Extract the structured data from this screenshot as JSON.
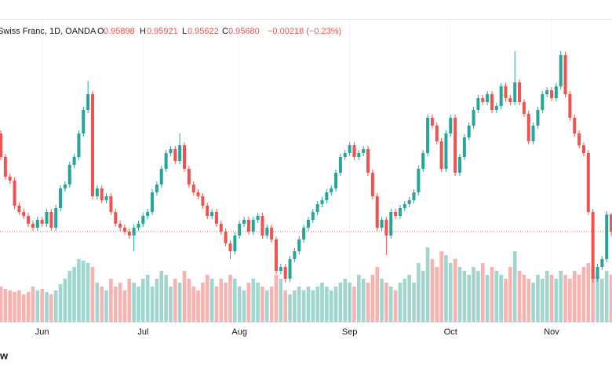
{
  "chart_data": {
    "type": "candlestick",
    "title": "Swiss Franc, 1D, OANDA",
    "ohlc_names": [
      "O",
      "H",
      "L",
      "C"
    ],
    "ohlc_labels": [
      "0.95898",
      "0.95921",
      "0.95622",
      "0.95680"
    ],
    "change": "−0.00218 (−0.23%)",
    "footer": "w",
    "up_color": "#26a69a",
    "down_color": "#ef5350",
    "volume_up_color": "#9fd6cf",
    "volume_down_color": "#f7b3b0",
    "ylim": [
      0.9453,
      0.9838
    ],
    "volume_lim": [
      0,
      100
    ],
    "grid": true,
    "categories": [
      null,
      null,
      null,
      null,
      null,
      null,
      null,
      null,
      null,
      "Jun",
      null,
      null,
      null,
      null,
      null,
      null,
      null,
      null,
      null,
      null,
      null,
      null,
      null,
      null,
      null,
      null,
      null,
      null,
      null,
      null,
      null,
      "Jul",
      null,
      null,
      null,
      null,
      null,
      null,
      null,
      null,
      null,
      null,
      null,
      null,
      null,
      null,
      null,
      null,
      null,
      null,
      null,
      null,
      "Aug",
      null,
      null,
      null,
      null,
      null,
      null,
      null,
      null,
      null,
      null,
      null,
      null,
      null,
      null,
      null,
      null,
      null,
      null,
      null,
      null,
      null,
      null,
      null,
      "Sep",
      null,
      null,
      null,
      null,
      null,
      null,
      null,
      null,
      null,
      null,
      null,
      null,
      null,
      null,
      null,
      null,
      null,
      null,
      null,
      null,
      null,
      "Oct",
      null,
      null,
      null,
      null,
      null,
      null,
      null,
      null,
      null,
      null,
      null,
      null,
      null,
      null,
      null,
      null,
      null,
      null,
      null,
      null,
      null,
      "Nov",
      null,
      null,
      null,
      null,
      null,
      null,
      null,
      null,
      null,
      null,
      null,
      null,
      null
    ],
    "open": [
      0.9693,
      0.9663,
      0.9638,
      0.9633,
      0.9601,
      0.9593,
      0.9588,
      0.9578,
      0.9573,
      0.9583,
      0.9578,
      0.9593,
      0.9573,
      0.9598,
      0.9623,
      0.9628,
      0.9653,
      0.9663,
      0.9693,
      0.9723,
      0.9743,
      0.9613,
      0.9623,
      0.9608,
      0.9613,
      0.9593,
      0.9578,
      0.9573,
      0.9568,
      0.9563,
      0.9573,
      0.9578,
      0.9588,
      0.9593,
      0.9618,
      0.9628,
      0.9648,
      0.9668,
      0.9673,
      0.9658,
      0.9678,
      0.9648,
      0.9628,
      0.9618,
      0.9613,
      0.9601,
      0.9588,
      0.9593,
      0.9578,
      0.9568,
      0.9553,
      0.9543,
      0.9563,
      0.9578,
      0.9583,
      0.9568,
      0.9583,
      0.9588,
      0.9563,
      0.9573,
      0.9558,
      0.9518,
      0.9523,
      0.9508,
      0.9533,
      0.9543,
      0.9558,
      0.9573,
      0.9583,
      0.9593,
      0.9603,
      0.9608,
      0.9618,
      0.9623,
      0.9643,
      0.9663,
      0.9668,
      0.9678,
      0.9663,
      0.9668,
      0.9673,
      0.9643,
      0.9613,
      0.9573,
      0.9583,
      0.9563,
      0.9593,
      0.9588,
      0.9598,
      0.9603,
      0.9608,
      0.9618,
      0.9648,
      0.9668,
      0.9713,
      0.9703,
      0.9683,
      0.9648,
      0.9693,
      0.9713,
      0.9643,
      0.9663,
      0.9688,
      0.9703,
      0.9723,
      0.9738,
      0.9733,
      0.9743,
      0.9723,
      0.9728,
      0.9753,
      0.9738,
      0.9733,
      0.9758,
      0.9733,
      0.9718,
      0.9683,
      0.9703,
      0.9723,
      0.9743,
      0.9748,
      0.9738,
      0.9753,
      0.9793,
      0.9743,
      0.9713,
      0.9693,
      0.9678,
      0.9668,
      0.9593,
      0.9508,
      0.9523,
      0.9533,
      0.95898
    ],
    "high": [
      0.9697,
      0.9667,
      0.9642,
      0.9637,
      0.9605,
      0.9597,
      0.9592,
      0.9582,
      0.9587,
      0.9587,
      0.9597,
      0.9597,
      0.9602,
      0.9627,
      0.9632,
      0.9657,
      0.9667,
      0.9697,
      0.9727,
      0.976,
      0.9747,
      0.9627,
      0.9627,
      0.9617,
      0.9617,
      0.9597,
      0.9582,
      0.9577,
      0.9572,
      0.9577,
      0.9582,
      0.9592,
      0.9597,
      0.9622,
      0.9632,
      0.9652,
      0.9672,
      0.9677,
      0.9677,
      0.9693,
      0.9682,
      0.9652,
      0.9632,
      0.9622,
      0.9617,
      0.9605,
      0.9597,
      0.9597,
      0.9582,
      0.9572,
      0.9557,
      0.9567,
      0.9582,
      0.9587,
      0.9587,
      0.9587,
      0.9592,
      0.9592,
      0.9577,
      0.9577,
      0.9562,
      0.9527,
      0.9527,
      0.9537,
      0.9547,
      0.9562,
      0.9577,
      0.9587,
      0.9597,
      0.9607,
      0.9612,
      0.9622,
      0.9627,
      0.9647,
      0.9667,
      0.9672,
      0.9682,
      0.9682,
      0.9672,
      0.9677,
      0.9677,
      0.9647,
      0.9617,
      0.9587,
      0.9587,
      0.9597,
      0.9597,
      0.9602,
      0.9607,
      0.9612,
      0.9622,
      0.9652,
      0.9672,
      0.9717,
      0.9717,
      0.9707,
      0.9687,
      0.9697,
      0.9717,
      0.9717,
      0.9667,
      0.9692,
      0.9707,
      0.9727,
      0.9742,
      0.9742,
      0.9747,
      0.9747,
      0.9732,
      0.9757,
      0.9757,
      0.9742,
      0.9798,
      0.9762,
      0.9737,
      0.9722,
      0.9707,
      0.9727,
      0.9747,
      0.9752,
      0.9752,
      0.9757,
      0.9798,
      0.9797,
      0.9747,
      0.9717,
      0.9697,
      0.9682,
      0.9672,
      0.9597,
      0.9527,
      0.9537,
      0.9594,
      0.95921
    ],
    "low": [
      0.9659,
      0.9634,
      0.9629,
      0.9597,
      0.9589,
      0.9584,
      0.9574,
      0.9569,
      0.9569,
      0.9574,
      0.9574,
      0.9569,
      0.9569,
      0.9594,
      0.9619,
      0.9624,
      0.9649,
      0.9659,
      0.9689,
      0.9719,
      0.9609,
      0.9609,
      0.9604,
      0.9604,
      0.9589,
      0.9574,
      0.9569,
      0.9564,
      0.9559,
      0.9543,
      0.9569,
      0.9574,
      0.9584,
      0.9589,
      0.9614,
      0.9624,
      0.9644,
      0.9664,
      0.9654,
      0.9654,
      0.9644,
      0.9624,
      0.9614,
      0.9609,
      0.9597,
      0.9584,
      0.9584,
      0.9574,
      0.9564,
      0.9549,
      0.9533,
      0.9539,
      0.9559,
      0.9574,
      0.9564,
      0.9564,
      0.9579,
      0.9559,
      0.9559,
      0.9554,
      0.9514,
      0.9514,
      0.9503,
      0.9504,
      0.9529,
      0.9539,
      0.9554,
      0.9569,
      0.9579,
      0.9589,
      0.9599,
      0.9604,
      0.9614,
      0.9619,
      0.9639,
      0.9659,
      0.9664,
      0.9659,
      0.9659,
      0.9664,
      0.9639,
      0.9609,
      0.9569,
      0.9569,
      0.9538,
      0.9559,
      0.9584,
      0.9584,
      0.9594,
      0.9599,
      0.9604,
      0.9614,
      0.9644,
      0.9664,
      0.9699,
      0.9679,
      0.9644,
      0.9644,
      0.9689,
      0.9639,
      0.9639,
      0.9659,
      0.9684,
      0.9699,
      0.9719,
      0.9729,
      0.9729,
      0.9719,
      0.9719,
      0.9724,
      0.9734,
      0.9729,
      0.9729,
      0.9729,
      0.9714,
      0.9679,
      0.9679,
      0.9699,
      0.9719,
      0.9739,
      0.9734,
      0.9734,
      0.9749,
      0.9739,
      0.9709,
      0.9689,
      0.9674,
      0.9664,
      0.9589,
      0.9503,
      0.9504,
      0.9519,
      0.9529,
      0.95622
    ],
    "close": [
      0.9663,
      0.9638,
      0.9633,
      0.9601,
      0.9593,
      0.9588,
      0.9578,
      0.9573,
      0.9583,
      0.9578,
      0.9593,
      0.9573,
      0.9598,
      0.9623,
      0.9628,
      0.9653,
      0.9663,
      0.9693,
      0.9723,
      0.9743,
      0.9613,
      0.9623,
      0.9608,
      0.9613,
      0.9593,
      0.9578,
      0.9573,
      0.9568,
      0.9563,
      0.9573,
      0.9578,
      0.9588,
      0.9593,
      0.9618,
      0.9628,
      0.9648,
      0.9668,
      0.9673,
      0.9658,
      0.9678,
      0.9648,
      0.9628,
      0.9618,
      0.9613,
      0.9601,
      0.9588,
      0.9593,
      0.9578,
      0.9568,
      0.9553,
      0.9543,
      0.9563,
      0.9578,
      0.9583,
      0.9568,
      0.9583,
      0.9588,
      0.9563,
      0.9573,
      0.9558,
      0.9518,
      0.9523,
      0.9508,
      0.9533,
      0.9543,
      0.9558,
      0.9573,
      0.9583,
      0.9593,
      0.9603,
      0.9608,
      0.9618,
      0.9623,
      0.9643,
      0.9663,
      0.9668,
      0.9678,
      0.9663,
      0.9668,
      0.9673,
      0.9643,
      0.9613,
      0.9573,
      0.9583,
      0.9563,
      0.9593,
      0.9588,
      0.9598,
      0.9603,
      0.9608,
      0.9618,
      0.9648,
      0.9668,
      0.9713,
      0.9703,
      0.9683,
      0.9648,
      0.9693,
      0.9713,
      0.9643,
      0.9663,
      0.9688,
      0.9703,
      0.9723,
      0.9738,
      0.9733,
      0.9743,
      0.9723,
      0.9728,
      0.9753,
      0.9738,
      0.9733,
      0.9758,
      0.9733,
      0.9718,
      0.9683,
      0.9703,
      0.9723,
      0.9743,
      0.9748,
      0.9738,
      0.9753,
      0.9793,
      0.9743,
      0.9713,
      0.9693,
      0.9678,
      0.9668,
      0.9593,
      0.9508,
      0.9523,
      0.9533,
      0.95898,
      0.9568
    ],
    "volume": [
      45,
      42,
      40,
      38,
      40,
      35,
      38,
      45,
      40,
      42,
      38,
      35,
      40,
      48,
      55,
      65,
      70,
      80,
      78,
      75,
      70,
      50,
      45,
      40,
      55,
      45,
      50,
      40,
      55,
      50,
      45,
      55,
      60,
      45,
      55,
      65,
      60,
      45,
      55,
      50,
      65,
      55,
      45,
      40,
      50,
      60,
      55,
      45,
      55,
      50,
      60,
      55,
      45,
      40,
      50,
      55,
      50,
      45,
      40,
      45,
      60,
      55,
      40,
      35,
      40,
      45,
      40,
      45,
      40,
      45,
      50,
      45,
      40,
      45,
      50,
      55,
      50,
      45,
      60,
      55,
      50,
      60,
      70,
      55,
      50,
      45,
      40,
      50,
      55,
      60,
      50,
      75,
      65,
      95,
      80,
      70,
      90,
      85,
      75,
      80,
      70,
      65,
      60,
      70,
      65,
      75,
      60,
      70,
      65,
      60,
      55,
      70,
      90,
      65,
      60,
      55,
      50,
      60,
      55,
      65,
      60,
      55,
      65,
      60,
      55,
      65,
      60,
      70,
      75,
      70,
      60,
      55,
      65,
      60
    ]
  }
}
